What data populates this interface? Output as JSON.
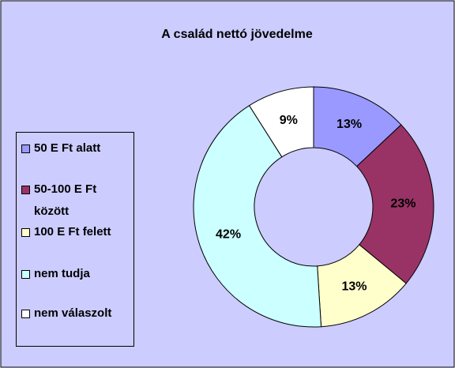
{
  "chart_data": {
    "type": "donut",
    "title": "A család nettó jövedelme",
    "categories": [
      "50 E Ft alatt",
      "50-100 E Ft között",
      "100 E Ft felett",
      "nem tudja",
      "nem válaszolt"
    ],
    "values": [
      13,
      23,
      13,
      42,
      9
    ],
    "value_labels": [
      "13%",
      "23%",
      "13%",
      "42%",
      "9%"
    ],
    "colors": [
      "#9999ff",
      "#993366",
      "#ffffcc",
      "#ccffff",
      "#ffffff"
    ],
    "legend": "left"
  }
}
